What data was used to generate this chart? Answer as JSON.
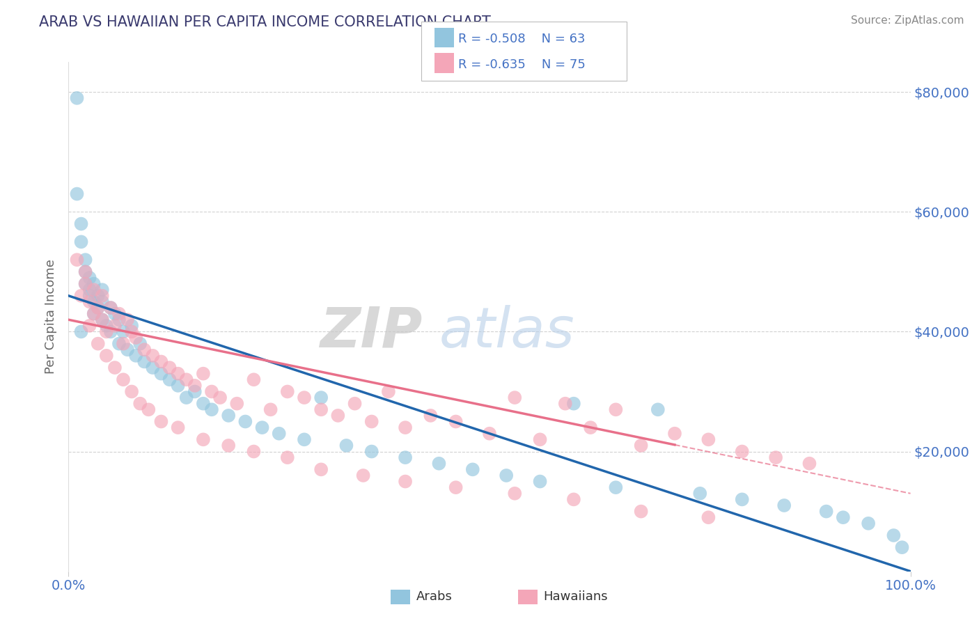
{
  "title": "ARAB VS HAWAIIAN PER CAPITA INCOME CORRELATION CHART",
  "source": "Source: ZipAtlas.com",
  "ylabel": "Per Capita Income",
  "xlim": [
    0,
    1.0
  ],
  "ylim": [
    0,
    85000
  ],
  "xticklabels": [
    "0.0%",
    "100.0%"
  ],
  "yticks": [
    20000,
    40000,
    60000,
    80000
  ],
  "yticklabels": [
    "$20,000",
    "$40,000",
    "$60,000",
    "$80,000"
  ],
  "arab_color": "#92c5de",
  "hawaiian_color": "#f4a6b8",
  "arab_line_color": "#2166ac",
  "hawaiian_line_color": "#e8708a",
  "grid_color": "#cccccc",
  "background_color": "#ffffff",
  "r_arab": -0.508,
  "n_arab": 63,
  "r_hawaiian": -0.635,
  "n_hawaiian": 75,
  "arab_intercept": 46000,
  "arab_slope": -46000,
  "hawaiian_intercept": 42000,
  "hawaiian_slope": -29000,
  "arab_scatter_x": [
    0.01,
    0.01,
    0.015,
    0.015,
    0.02,
    0.02,
    0.02,
    0.025,
    0.025,
    0.03,
    0.03,
    0.03,
    0.035,
    0.035,
    0.04,
    0.04,
    0.04,
    0.045,
    0.05,
    0.05,
    0.055,
    0.06,
    0.06,
    0.065,
    0.07,
    0.075,
    0.08,
    0.085,
    0.09,
    0.1,
    0.11,
    0.12,
    0.13,
    0.14,
    0.15,
    0.16,
    0.17,
    0.19,
    0.21,
    0.23,
    0.25,
    0.28,
    0.3,
    0.33,
    0.36,
    0.4,
    0.44,
    0.48,
    0.52,
    0.56,
    0.6,
    0.65,
    0.7,
    0.75,
    0.8,
    0.85,
    0.9,
    0.92,
    0.95,
    0.98,
    0.99,
    0.015,
    0.025
  ],
  "arab_scatter_y": [
    79000,
    63000,
    58000,
    55000,
    52000,
    48000,
    50000,
    49000,
    47000,
    45000,
    48000,
    43000,
    46000,
    44000,
    47000,
    42000,
    45000,
    41000,
    44000,
    40000,
    43000,
    42000,
    38000,
    40000,
    37000,
    41000,
    36000,
    38000,
    35000,
    34000,
    33000,
    32000,
    31000,
    29000,
    30000,
    28000,
    27000,
    26000,
    25000,
    24000,
    23000,
    22000,
    29000,
    21000,
    20000,
    19000,
    18000,
    17000,
    16000,
    15000,
    28000,
    14000,
    27000,
    13000,
    12000,
    11000,
    10000,
    9000,
    8000,
    6000,
    4000,
    40000,
    46000
  ],
  "hawaiian_scatter_x": [
    0.01,
    0.015,
    0.02,
    0.02,
    0.025,
    0.03,
    0.03,
    0.035,
    0.04,
    0.04,
    0.045,
    0.05,
    0.055,
    0.06,
    0.065,
    0.07,
    0.075,
    0.08,
    0.09,
    0.1,
    0.11,
    0.12,
    0.13,
    0.14,
    0.15,
    0.16,
    0.17,
    0.18,
    0.2,
    0.22,
    0.24,
    0.26,
    0.28,
    0.3,
    0.32,
    0.34,
    0.36,
    0.38,
    0.4,
    0.43,
    0.46,
    0.5,
    0.53,
    0.56,
    0.59,
    0.62,
    0.65,
    0.68,
    0.72,
    0.76,
    0.8,
    0.84,
    0.88,
    0.025,
    0.035,
    0.045,
    0.055,
    0.065,
    0.075,
    0.085,
    0.095,
    0.11,
    0.13,
    0.16,
    0.19,
    0.22,
    0.26,
    0.3,
    0.35,
    0.4,
    0.46,
    0.53,
    0.6,
    0.68,
    0.76
  ],
  "hawaiian_scatter_y": [
    52000,
    46000,
    48000,
    50000,
    45000,
    43000,
    47000,
    44000,
    42000,
    46000,
    40000,
    44000,
    41000,
    43000,
    38000,
    42000,
    40000,
    39000,
    37000,
    36000,
    35000,
    34000,
    33000,
    32000,
    31000,
    33000,
    30000,
    29000,
    28000,
    32000,
    27000,
    30000,
    29000,
    27000,
    26000,
    28000,
    25000,
    30000,
    24000,
    26000,
    25000,
    23000,
    29000,
    22000,
    28000,
    24000,
    27000,
    21000,
    23000,
    22000,
    20000,
    19000,
    18000,
    41000,
    38000,
    36000,
    34000,
    32000,
    30000,
    28000,
    27000,
    25000,
    24000,
    22000,
    21000,
    20000,
    19000,
    17000,
    16000,
    15000,
    14000,
    13000,
    12000,
    10000,
    9000
  ],
  "watermark_zip": "ZIP",
  "watermark_atlas": "atlas",
  "title_color": "#3a3a6e",
  "source_color": "#888888",
  "axis_label_color": "#666666",
  "tick_color": "#4472c4"
}
